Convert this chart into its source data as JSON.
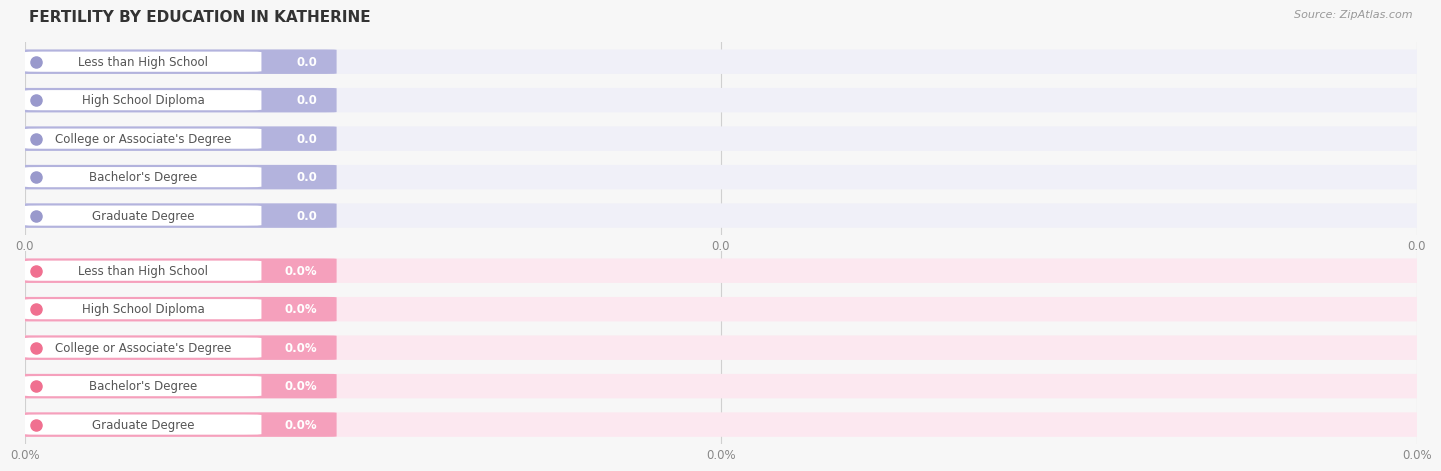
{
  "title": "FERTILITY BY EDUCATION IN KATHERINE",
  "source": "Source: ZipAtlas.com",
  "categories": [
    "Less than High School",
    "High School Diploma",
    "College or Associate's Degree",
    "Bachelor's Degree",
    "Graduate Degree"
  ],
  "top_values": [
    0.0,
    0.0,
    0.0,
    0.0,
    0.0
  ],
  "bottom_values": [
    0.0,
    0.0,
    0.0,
    0.0,
    0.0
  ],
  "top_bar_color": "#b3b3dd",
  "top_bar_bg": "#f0f0f8",
  "top_dot_color": "#9999cc",
  "bottom_bar_color": "#f5a0bc",
  "bottom_bar_bg": "#fce8f0",
  "bottom_dot_color": "#f07090",
  "top_xtick_labels": [
    "0.0",
    "0.0",
    "0.0"
  ],
  "bottom_xtick_labels": [
    "0.0%",
    "0.0%",
    "0.0%"
  ],
  "bg_color": "#f7f7f7",
  "title_fontsize": 11,
  "source_fontsize": 8,
  "bar_text_color": "#555555",
  "value_text_color_top": "#666688",
  "value_text_color_bottom": "#cc6688"
}
